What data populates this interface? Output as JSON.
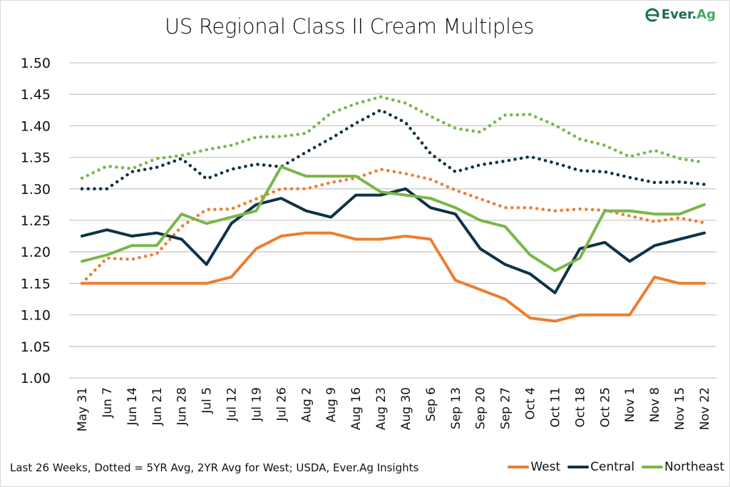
{
  "chart_data": {
    "type": "line",
    "title": "US Regional Class II Cream Multiples",
    "xlabel": "",
    "ylabel": "",
    "ylim": [
      1.0,
      1.5
    ],
    "yticks": [
      "1.00",
      "1.05",
      "1.10",
      "1.15",
      "1.20",
      "1.25",
      "1.30",
      "1.35",
      "1.40",
      "1.45",
      "1.50"
    ],
    "grid": true,
    "legend_position": "bottom-right",
    "categories": [
      "May 31",
      "Jun 7",
      "Jun 14",
      "Jun 21",
      "Jun 28",
      "Jul 5",
      "Jul 12",
      "Jul 19",
      "Jul 26",
      "Aug 2",
      "Aug 9",
      "Aug 16",
      "Aug 23",
      "Aug 30",
      "Sep 6",
      "Sep 13",
      "Sep 20",
      "Sep 27",
      "Oct 4",
      "Oct 11",
      "Oct 18",
      "Oct 25",
      "Nov 1",
      "Nov 8",
      "Nov 15",
      "Nov 22"
    ],
    "series": [
      {
        "name": "West",
        "style": "solid",
        "color": "#ED7D31",
        "values": [
          1.15,
          1.15,
          1.15,
          1.15,
          1.15,
          1.15,
          1.16,
          1.205,
          1.225,
          1.23,
          1.23,
          1.22,
          1.22,
          1.225,
          1.22,
          1.155,
          1.14,
          1.125,
          1.095,
          1.09,
          1.1,
          1.1,
          1.1,
          1.16,
          1.15,
          1.15
        ]
      },
      {
        "name": "Central",
        "style": "solid",
        "color": "#0E3247",
        "values": [
          1.225,
          1.235,
          1.225,
          1.23,
          1.22,
          1.18,
          1.245,
          1.275,
          1.285,
          1.265,
          1.255,
          1.29,
          1.29,
          1.3,
          1.27,
          1.26,
          1.205,
          1.18,
          1.165,
          1.135,
          1.205,
          1.215,
          1.185,
          1.21,
          1.22,
          1.23
        ]
      },
      {
        "name": "Northeast",
        "style": "solid",
        "color": "#7AB648",
        "values": [
          1.185,
          1.195,
          1.21,
          1.21,
          1.26,
          1.245,
          1.255,
          1.265,
          1.335,
          1.32,
          1.32,
          1.32,
          1.295,
          1.29,
          1.285,
          1.27,
          1.25,
          1.24,
          1.195,
          1.17,
          1.19,
          1.265,
          1.265,
          1.26,
          1.26,
          1.275
        ]
      },
      {
        "name": "West Avg",
        "style": "dotted",
        "color": "#ED7D31",
        "values": [
          1.15,
          1.19,
          1.188,
          1.197,
          1.24,
          1.267,
          1.268,
          1.284,
          1.3,
          1.3,
          1.31,
          1.317,
          1.331,
          1.324,
          1.315,
          1.298,
          1.284,
          1.27,
          1.27,
          1.265,
          1.268,
          1.266,
          1.257,
          1.248,
          1.254,
          1.246
        ]
      },
      {
        "name": "Central Avg",
        "style": "dotted",
        "color": "#0E3247",
        "values": [
          1.3,
          1.3,
          1.327,
          1.334,
          1.348,
          1.316,
          1.331,
          1.339,
          1.335,
          1.358,
          1.38,
          1.404,
          1.425,
          1.405,
          1.356,
          1.327,
          1.338,
          1.344,
          1.351,
          1.341,
          1.329,
          1.327,
          1.318,
          1.31,
          1.311,
          1.307
        ]
      },
      {
        "name": "Northeast Avg",
        "style": "dotted",
        "color": "#7AB648",
        "values": [
          1.317,
          1.336,
          1.332,
          1.348,
          1.353,
          1.362,
          1.369,
          1.382,
          1.383,
          1.388,
          1.42,
          1.435,
          1.446,
          1.436,
          1.415,
          1.396,
          1.39,
          1.417,
          1.418,
          1.401,
          1.379,
          1.369,
          1.351,
          1.361,
          1.348,
          1.342
        ]
      }
    ],
    "legend": [
      "West",
      "Central",
      "Northeast"
    ]
  },
  "header": {
    "title": "US Regional Class II Cream Multiples",
    "logo_text_main": "Ever.",
    "logo_text_accent": "Ag"
  },
  "footer": {
    "note": "Last 26 Weeks, Dotted = 5YR Avg, 2YR Avg for West; USDA, Ever.Ag Insights"
  },
  "legend": {
    "items": [
      {
        "label": "West",
        "color": "#ED7D31"
      },
      {
        "label": "Central",
        "color": "#0E3247"
      },
      {
        "label": "Northeast",
        "color": "#7AB648"
      }
    ]
  }
}
